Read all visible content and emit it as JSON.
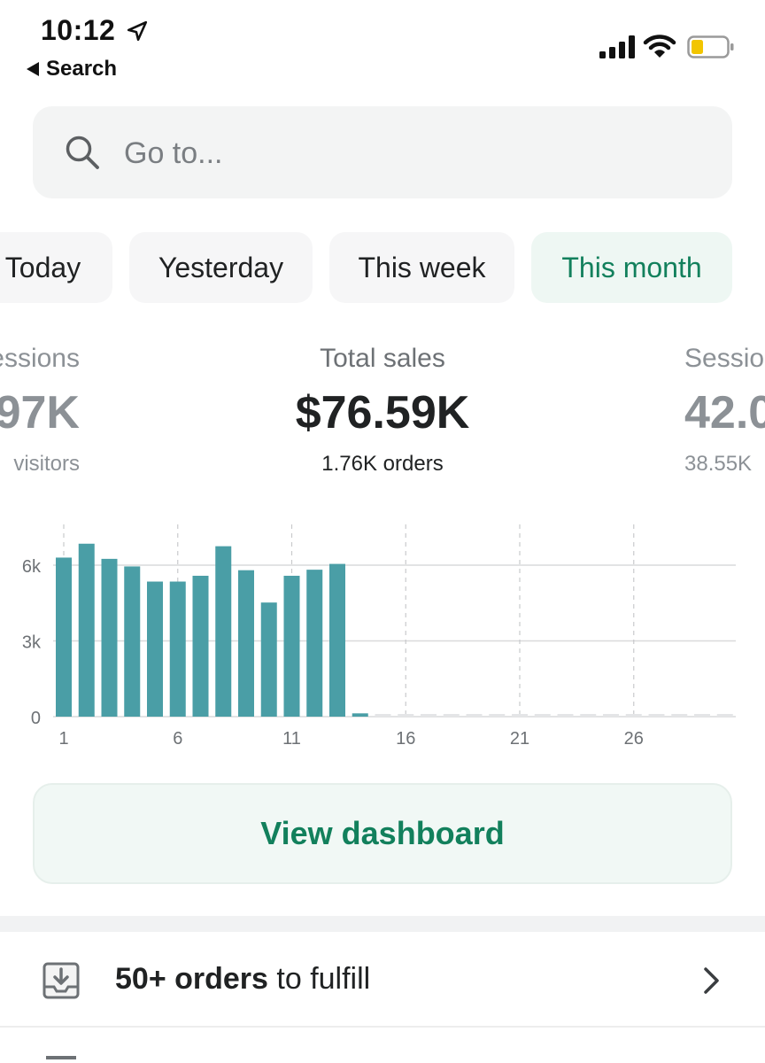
{
  "status_bar": {
    "time": "10:12",
    "back_app": "Search",
    "icons": [
      "location-arrow-icon",
      "cellular-signal-icon",
      "wifi-icon",
      "battery-low-icon"
    ]
  },
  "search": {
    "placeholder": "Go to..."
  },
  "date_tabs": [
    {
      "label": "Today",
      "active": false
    },
    {
      "label": "Yesterday",
      "active": false
    },
    {
      "label": "This week",
      "active": false
    },
    {
      "label": "This month",
      "active": true
    }
  ],
  "metrics": {
    "left": {
      "label": "Sessions",
      "value": "97K",
      "sub": "visitors"
    },
    "center": {
      "label": "Total sales",
      "value": "$76.59K",
      "sub": "1.76K orders"
    },
    "right": {
      "label": "Sessions",
      "value": "42.0",
      "sub": "38.55K"
    }
  },
  "chart_data": {
    "type": "bar",
    "x": [
      1,
      2,
      3,
      4,
      5,
      6,
      7,
      8,
      9,
      10,
      11,
      12,
      13,
      14,
      15,
      16,
      17,
      18,
      19,
      20,
      21,
      22,
      23,
      24,
      25,
      26,
      27,
      28,
      29,
      30
    ],
    "values": [
      6300,
      6850,
      6250,
      5950,
      5350,
      5350,
      5580,
      6750,
      5800,
      4520,
      5580,
      5820,
      6050,
      130,
      0,
      0,
      0,
      0,
      0,
      0,
      0,
      0,
      0,
      0,
      0,
      0,
      0,
      0,
      0,
      0
    ],
    "x_ticks": [
      "1",
      "6",
      "11",
      "16",
      "21",
      "26"
    ],
    "y_ticks": [
      "0",
      "3k",
      "6k"
    ],
    "ylim": [
      0,
      7200
    ],
    "color": "#4a9ea6",
    "grid": true
  },
  "dashboard_button": {
    "label": "View dashboard"
  },
  "tasks": [
    {
      "count": "50+ orders",
      "suffix": " to fulfill",
      "icon": "download-tray-icon"
    }
  ],
  "colors": {
    "accent": "#12805c",
    "bar": "#4a9ea6",
    "active_tab_bg": "#eef7f3"
  }
}
